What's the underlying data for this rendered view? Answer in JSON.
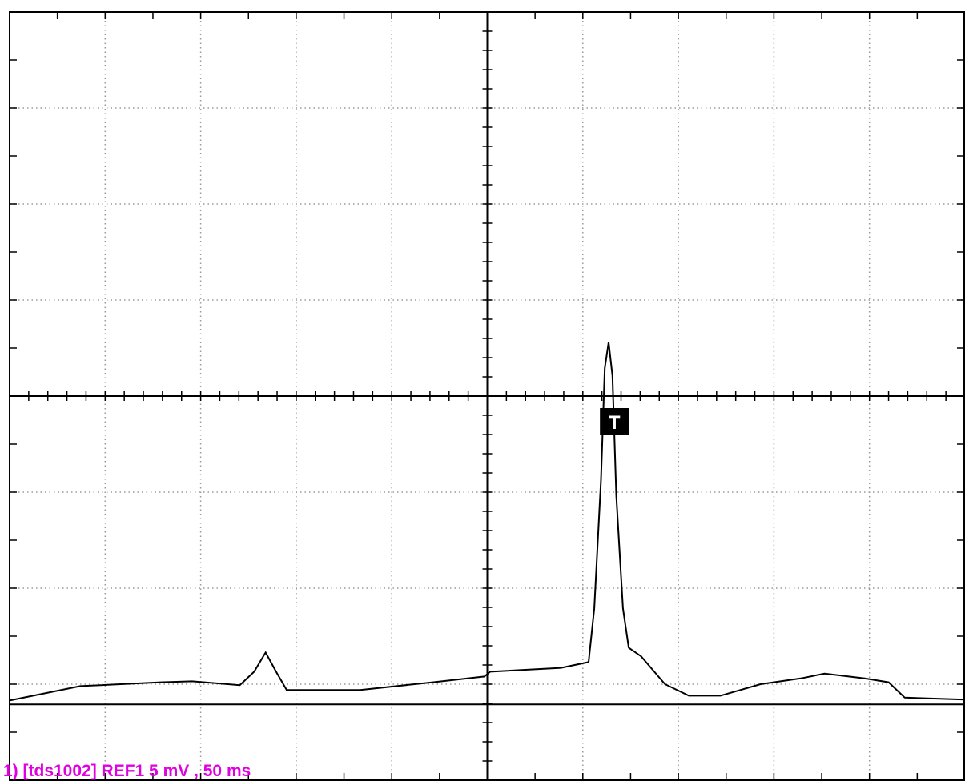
{
  "chart_data": {
    "type": "line",
    "x": [
      0,
      0.74,
      1.58,
      1.91,
      2.41,
      2.56,
      2.68,
      2.79,
      2.9,
      3.67,
      4.43,
      4.97,
      5.03,
      5.77,
      6.06,
      6.12,
      6.19,
      6.23,
      6.27,
      6.31,
      6.35,
      6.42,
      6.48,
      6.61,
      6.86,
      7.11,
      7.44,
      7.86,
      8.28,
      8.53,
      8.95,
      9.2,
      9.37,
      10
    ],
    "series": [
      {
        "color": "#000000",
        "values": [
          0.83,
          0.98,
          1.02,
          1.03,
          0.99,
          1.13,
          1.33,
          1.13,
          0.94,
          0.94,
          1.02,
          1.08,
          1.13,
          1.17,
          1.23,
          1.79,
          3.13,
          4.29,
          4.56,
          4.21,
          2.96,
          1.79,
          1.38,
          1.29,
          1.0,
          0.88,
          0.88,
          1.0,
          1.06,
          1.11,
          1.06,
          1.02,
          0.86,
          0.84
        ]
      }
    ],
    "reference_level": 0.79,
    "trigger": {
      "text": "T",
      "x": 6.33
    },
    "label": "1) [tds1002] REF1 5 mV , 50 ms",
    "label_color": "#e000e0",
    "xlim": [
      0,
      10
    ],
    "ylim": [
      0,
      8
    ],
    "xticks": [
      0,
      1,
      2,
      3,
      4,
      5,
      6,
      7,
      8,
      9,
      10
    ],
    "yticks": [
      0,
      1,
      2,
      3,
      4,
      5,
      6,
      7,
      8
    ],
    "grid": true
  }
}
